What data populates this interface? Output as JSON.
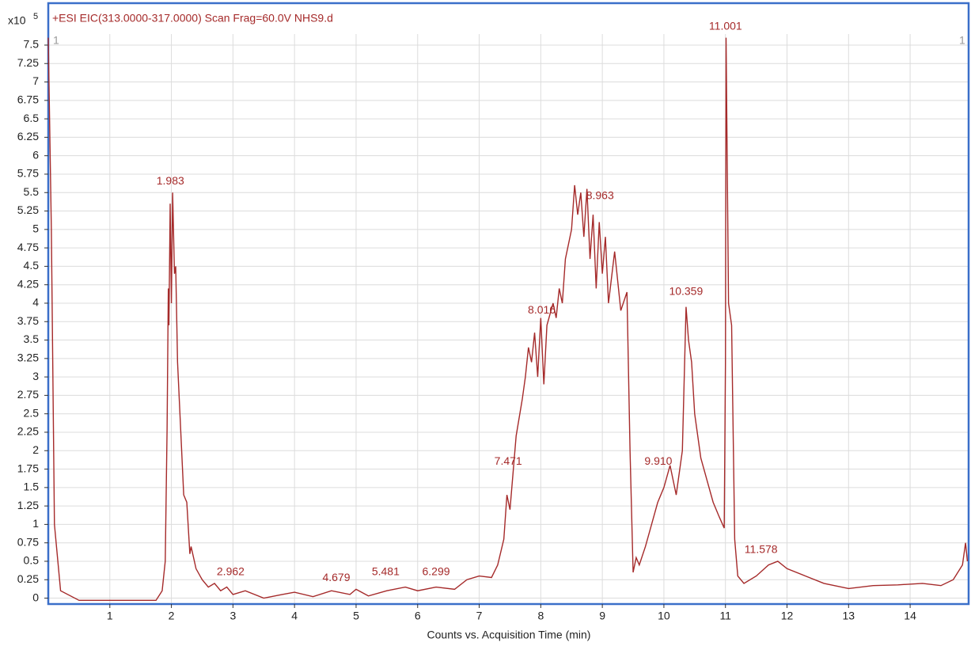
{
  "chart_data": {
    "type": "line",
    "title": "+ESI EIC(313.0000-317.0000) Scan Frag=60.0V NHS9.d",
    "x_label": "Counts vs. Acquisition Time (min)",
    "y_multiplier": {
      "base": "x10",
      "exponent": "5"
    },
    "cursor_labels": [
      "1",
      "1"
    ],
    "grid": true,
    "xlim": [
      0,
      14.95
    ],
    "ylim": [
      -0.08,
      7.65
    ],
    "xticks": [
      1,
      2,
      3,
      4,
      5,
      6,
      7,
      8,
      9,
      10,
      11,
      12,
      13,
      14
    ],
    "yticks": [
      0,
      0.25,
      0.5,
      0.75,
      1,
      1.25,
      1.5,
      1.75,
      2,
      2.25,
      2.5,
      2.75,
      3,
      3.25,
      3.5,
      3.75,
      4,
      4.25,
      4.5,
      4.75,
      5,
      5.25,
      5.5,
      5.75,
      6,
      6.25,
      6.5,
      6.75,
      7,
      7.25,
      7.5
    ],
    "series": [
      {
        "color": "#a52a2a",
        "x": [
          0,
          0.05,
          0.1,
          0.2,
          0.5,
          1,
          1.5,
          1.75,
          1.85,
          1.9,
          1.93,
          1.95,
          1.96,
          1.98,
          2,
          2.02,
          2.05,
          2.07,
          2.1,
          2.2,
          2.25,
          2.3,
          2.32,
          2.4,
          2.5,
          2.6,
          2.7,
          2.8,
          2.9,
          3,
          3.2,
          3.5,
          3.8,
          4,
          4.3,
          4.6,
          4.9,
          5,
          5.2,
          5.5,
          5.8,
          6,
          6.3,
          6.6,
          6.8,
          7,
          7.2,
          7.3,
          7.4,
          7.45,
          7.5,
          7.55,
          7.6,
          7.7,
          7.75,
          7.8,
          7.85,
          7.9,
          7.95,
          8,
          8.05,
          8.1,
          8.2,
          8.25,
          8.3,
          8.35,
          8.4,
          8.45,
          8.5,
          8.55,
          8.6,
          8.65,
          8.7,
          8.75,
          8.8,
          8.85,
          8.9,
          8.95,
          9,
          9.05,
          9.1,
          9.2,
          9.3,
          9.4,
          9.45,
          9.5,
          9.55,
          9.6,
          9.7,
          9.8,
          9.9,
          10,
          10.1,
          10.2,
          10.3,
          10.36,
          10.4,
          10.45,
          10.5,
          10.6,
          10.7,
          10.8,
          10.9,
          10.98,
          11,
          11.01,
          11.05,
          11.1,
          11.15,
          11.2,
          11.3,
          11.5,
          11.7,
          11.85,
          12,
          12.3,
          12.6,
          13,
          13.4,
          13.8,
          14.2,
          14.5,
          14.7,
          14.85,
          14.9,
          14.93
        ],
        "values": [
          7.6,
          5,
          1,
          0.1,
          -0.03,
          -0.03,
          -0.03,
          -0.03,
          0.1,
          0.5,
          2.3,
          4.2,
          3.7,
          5.35,
          4,
          5.5,
          4.4,
          4.5,
          3.2,
          1.4,
          1.3,
          0.6,
          0.7,
          0.4,
          0.25,
          0.15,
          0.2,
          0.1,
          0.15,
          0.05,
          0.1,
          0,
          0.05,
          0.08,
          0.02,
          0.1,
          0.05,
          0.12,
          0.03,
          0.1,
          0.15,
          0.1,
          0.15,
          0.12,
          0.25,
          0.3,
          0.28,
          0.45,
          0.8,
          1.4,
          1.2,
          1.7,
          2.2,
          2.7,
          3,
          3.4,
          3.2,
          3.6,
          3,
          3.8,
          2.9,
          3.7,
          4,
          3.8,
          4.2,
          4,
          4.6,
          4.8,
          5,
          5.6,
          5.2,
          5.5,
          4.9,
          5.55,
          4.6,
          5.2,
          4.2,
          5.1,
          4.4,
          4.9,
          4,
          4.7,
          3.9,
          4.15,
          2,
          0.35,
          0.55,
          0.45,
          0.7,
          1,
          1.3,
          1.5,
          1.8,
          1.4,
          2,
          3.95,
          3.5,
          3.2,
          2.5,
          1.9,
          1.6,
          1.3,
          1.1,
          0.95,
          3.2,
          7.6,
          4,
          3.7,
          0.8,
          0.3,
          0.2,
          0.3,
          0.45,
          0.5,
          0.4,
          0.3,
          0.2,
          0.13,
          0.17,
          0.18,
          0.2,
          0.17,
          0.25,
          0.45,
          0.75,
          0.5
        ]
      }
    ],
    "annotations": [
      {
        "label": "1.983",
        "x": 1.983,
        "y": 5.5
      },
      {
        "label": "2.962",
        "x": 2.962,
        "y": 0.2
      },
      {
        "label": "4.679",
        "x": 4.679,
        "y": 0.12
      },
      {
        "label": "5.481",
        "x": 5.481,
        "y": 0.2
      },
      {
        "label": "6.299",
        "x": 6.299,
        "y": 0.2
      },
      {
        "label": "7.471",
        "x": 7.471,
        "y": 1.7
      },
      {
        "label": "8.016",
        "x": 8.016,
        "y": 3.75
      },
      {
        "label": "8.963",
        "x": 8.963,
        "y": 5.3
      },
      {
        "label": "9.910",
        "x": 9.91,
        "y": 1.7
      },
      {
        "label": "10.359",
        "x": 10.359,
        "y": 4
      },
      {
        "label": "11.001",
        "x": 11.001,
        "y": 7.6
      },
      {
        "label": "11.578",
        "x": 11.578,
        "y": 0.5
      }
    ]
  }
}
